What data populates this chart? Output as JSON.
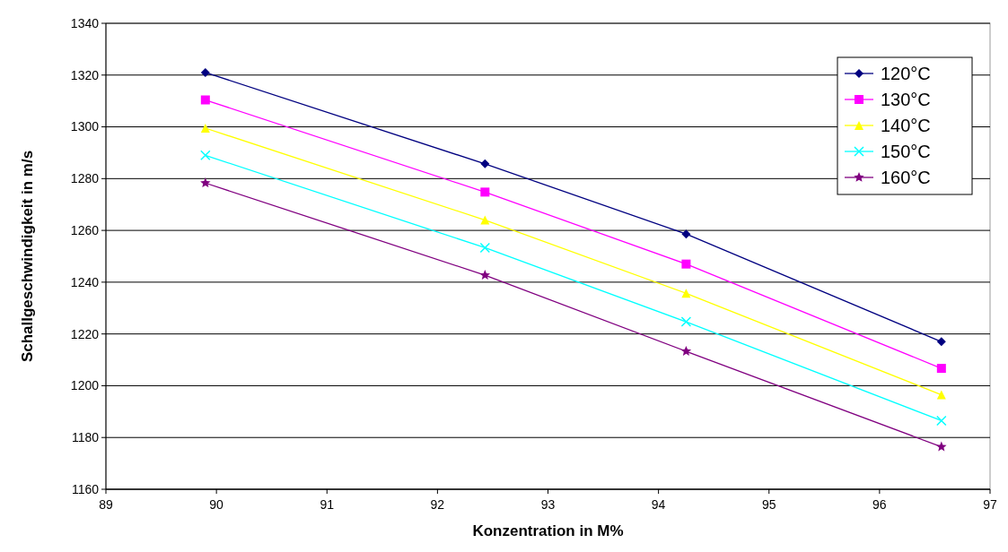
{
  "chart_data": {
    "type": "line",
    "xlabel": "Konzentration in M%",
    "ylabel": "Schallgeschwindigkeit in m/s",
    "x": [
      89.9,
      92.43,
      94.25,
      96.56
    ],
    "xlim": [
      89,
      97
    ],
    "xticks": [
      89,
      90,
      91,
      92,
      93,
      94,
      95,
      96,
      97
    ],
    "ylim": [
      1160,
      1340
    ],
    "yticks": [
      1160,
      1180,
      1200,
      1220,
      1240,
      1260,
      1280,
      1300,
      1320,
      1340
    ],
    "grid": "y",
    "legend": "top right",
    "series": [
      {
        "name": "120°C",
        "color": "#000080",
        "marker": "diamond",
        "values": [
          1321,
          1285.7,
          1258.6,
          1217
        ]
      },
      {
        "name": "130°C",
        "color": "#ff00ff",
        "marker": "square",
        "values": [
          1310.4,
          1274.8,
          1247,
          1206.7
        ]
      },
      {
        "name": "140°C",
        "color": "#ffff00",
        "marker": "triangle",
        "values": [
          1299.5,
          1264,
          1235.7,
          1196.5
        ]
      },
      {
        "name": "150°C",
        "color": "#00ffff",
        "marker": "cross",
        "values": [
          1289,
          1253.3,
          1224.7,
          1186.5
        ]
      },
      {
        "name": "160°C",
        "color": "#800080",
        "marker": "star",
        "values": [
          1278.3,
          1242.7,
          1213.3,
          1176.4
        ]
      }
    ]
  }
}
